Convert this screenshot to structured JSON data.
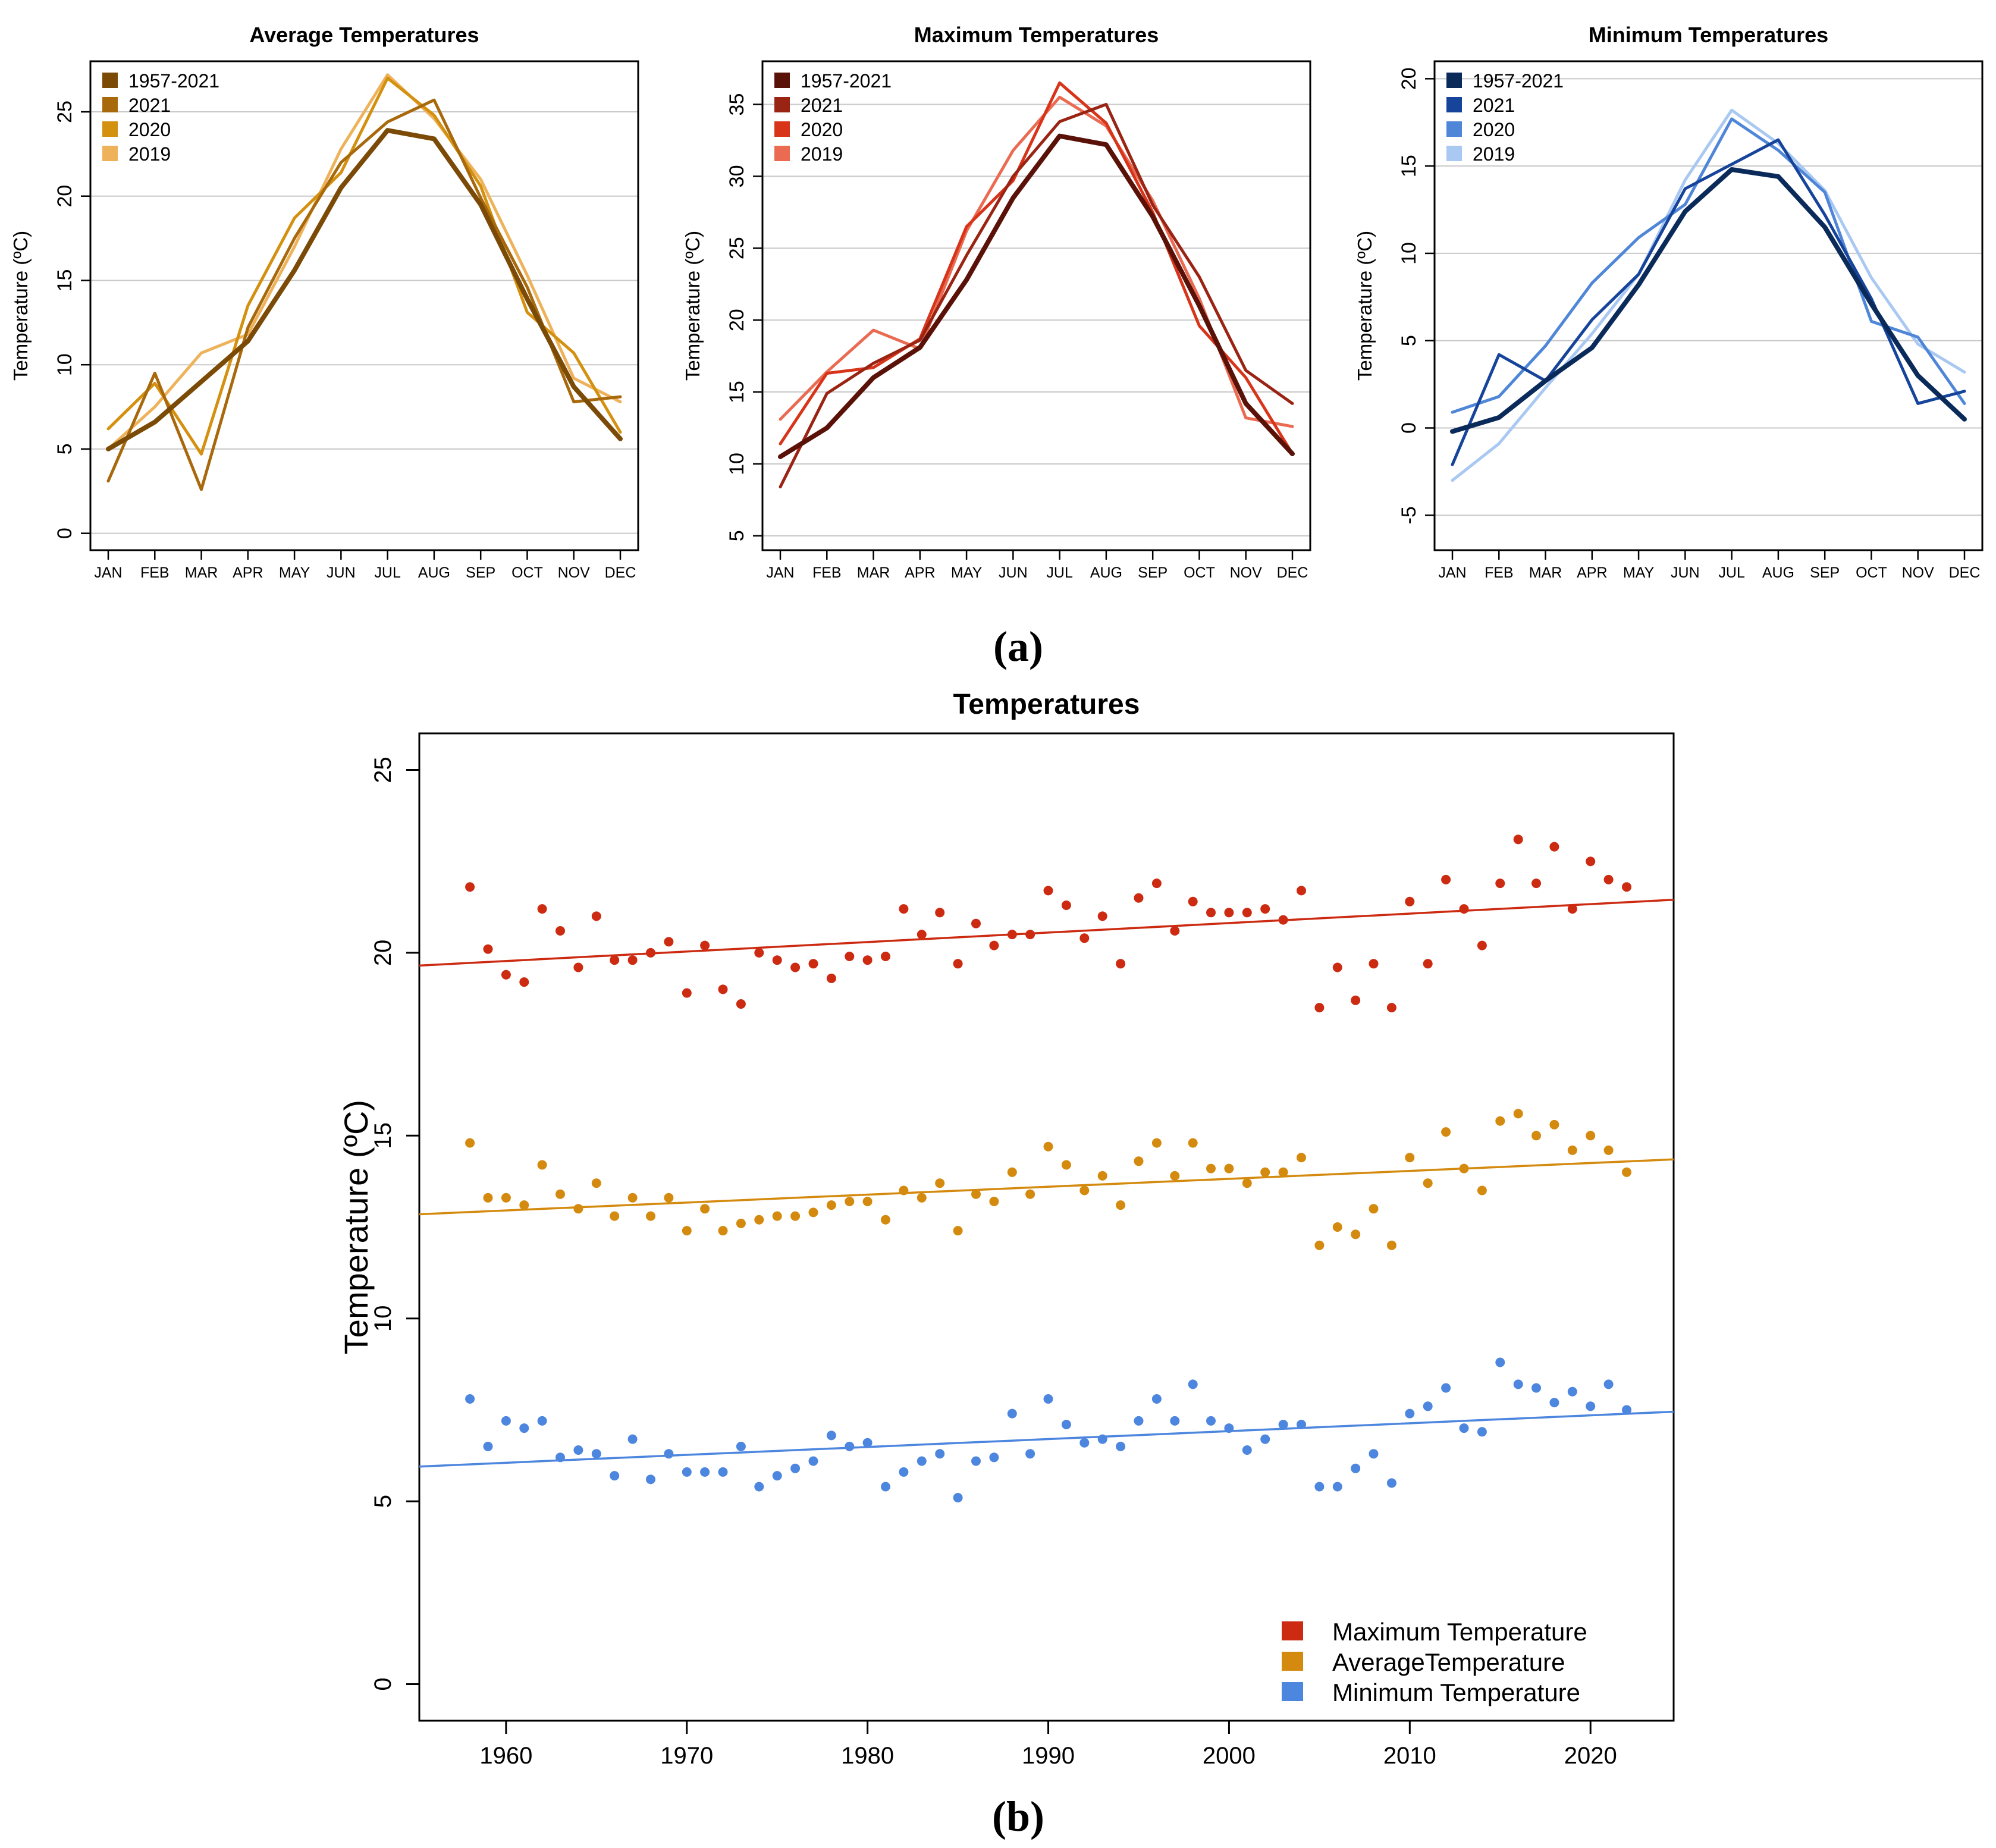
{
  "chart_data": [
    {
      "type": "line",
      "panel": "a1",
      "title": "Average Temperatures",
      "ylabel": "Temperature (ºC)",
      "xlabel": "",
      "categories": [
        "JAN",
        "FEB",
        "MAR",
        "APR",
        "MAY",
        "JUN",
        "JUL",
        "AUG",
        "SEP",
        "OCT",
        "NOV",
        "DEC"
      ],
      "ylim": [
        -1,
        28
      ],
      "yticks": [
        0,
        5,
        10,
        15,
        20,
        25
      ],
      "grid": "horizontal",
      "legend_position": "top-left",
      "series": [
        {
          "name": "1957-2021",
          "color": "#7a4a06",
          "values": [
            5.0,
            6.6,
            9.0,
            11.4,
            15.6,
            20.5,
            23.9,
            23.4,
            19.5,
            13.9,
            8.7,
            5.6
          ]
        },
        {
          "name": "2021",
          "color": "#a8690c",
          "values": [
            3.1,
            9.5,
            2.6,
            12.2,
            17.5,
            22.0,
            24.4,
            25.7,
            19.9,
            14.6,
            7.8,
            8.1
          ]
        },
        {
          "name": "2020",
          "color": "#d4900f",
          "values": [
            6.2,
            8.9,
            4.7,
            13.5,
            18.7,
            21.4,
            27.0,
            24.8,
            20.6,
            13.1,
            10.7,
            6.0
          ]
        },
        {
          "name": "2019",
          "color": "#eeb25a",
          "values": [
            5.0,
            7.5,
            10.7,
            11.8,
            17.0,
            22.8,
            27.2,
            24.6,
            21.0,
            15.3,
            9.2,
            7.8
          ]
        }
      ]
    },
    {
      "type": "line",
      "panel": "a2",
      "title": "Maximum Temperatures",
      "ylabel": "Temperature (ºC)",
      "xlabel": "",
      "categories": [
        "JAN",
        "FEB",
        "MAR",
        "APR",
        "MAY",
        "JUN",
        "JUL",
        "AUG",
        "SEP",
        "OCT",
        "NOV",
        "DEC"
      ],
      "ylim": [
        4,
        38
      ],
      "yticks": [
        5,
        10,
        15,
        20,
        25,
        30,
        35
      ],
      "grid": "horizontal",
      "legend_position": "top-left",
      "series": [
        {
          "name": "1957-2021",
          "color": "#5a1208",
          "values": [
            10.5,
            12.5,
            16.0,
            18.1,
            22.8,
            28.5,
            32.8,
            32.2,
            27.2,
            21.0,
            14.2,
            10.7
          ]
        },
        {
          "name": "2021",
          "color": "#9a2414",
          "values": [
            8.4,
            14.9,
            17.0,
            18.6,
            24.5,
            30.0,
            33.8,
            35.0,
            28.0,
            23.0,
            16.5,
            14.2
          ]
        },
        {
          "name": "2020",
          "color": "#d8341a",
          "values": [
            11.4,
            16.3,
            16.7,
            18.7,
            26.5,
            29.7,
            36.5,
            33.7,
            27.5,
            19.6,
            16.0,
            10.7
          ]
        },
        {
          "name": "2019",
          "color": "#ea6a52",
          "values": [
            13.1,
            16.4,
            19.3,
            18.0,
            26.2,
            31.8,
            35.5,
            33.5,
            28.3,
            21.5,
            13.2,
            12.6
          ]
        }
      ]
    },
    {
      "type": "line",
      "panel": "a3",
      "title": "Minimum Temperatures",
      "ylabel": "Temperature (ºC)",
      "xlabel": "",
      "categories": [
        "JAN",
        "FEB",
        "MAR",
        "APR",
        "MAY",
        "JUN",
        "JUL",
        "AUG",
        "SEP",
        "OCT",
        "NOV",
        "DEC"
      ],
      "ylim": [
        -7,
        21
      ],
      "yticks": [
        -5,
        0,
        5,
        10,
        15,
        20
      ],
      "grid": "horizontal",
      "legend_position": "top-left",
      "series": [
        {
          "name": "1957-2021",
          "color": "#0a2a5a",
          "values": [
            -0.2,
            0.6,
            2.7,
            4.6,
            8.2,
            12.4,
            14.8,
            14.4,
            11.5,
            7.1,
            3.0,
            0.5
          ]
        },
        {
          "name": "2021",
          "color": "#16449a",
          "values": [
            -2.1,
            4.2,
            2.7,
            6.2,
            8.8,
            13.7,
            15.1,
            16.5,
            12.2,
            7.4,
            1.4,
            2.1
          ]
        },
        {
          "name": "2020",
          "color": "#4f86d8",
          "values": [
            0.9,
            1.8,
            4.7,
            8.3,
            10.9,
            12.8,
            17.7,
            15.9,
            13.5,
            6.1,
            5.2,
            1.4
          ]
        },
        {
          "name": "2019",
          "color": "#a9c8f2",
          "values": [
            -3.0,
            -0.9,
            2.3,
            5.4,
            8.8,
            14.2,
            18.2,
            16.3,
            13.6,
            8.6,
            4.8,
            3.2
          ]
        }
      ]
    },
    {
      "type": "scatter",
      "panel": "b",
      "title": "Temperatures",
      "ylabel": "Temperature (ºC)",
      "xlabel": "",
      "xlim": [
        1955.2,
        2024.6
      ],
      "ylim": [
        -1.0,
        26.0
      ],
      "xticks": [
        1960,
        1970,
        1980,
        1990,
        2000,
        2010,
        2020
      ],
      "yticks": [
        0,
        5,
        10,
        15,
        20,
        25
      ],
      "grid": "none",
      "legend_position": "bottom-right",
      "x": [
        1958,
        1959,
        1960,
        1961,
        1962,
        1963,
        1964,
        1965,
        1966,
        1967,
        1968,
        1969,
        1970,
        1971,
        1972,
        1973,
        1974,
        1975,
        1976,
        1977,
        1978,
        1979,
        1980,
        1981,
        1982,
        1983,
        1984,
        1985,
        1986,
        1987,
        1988,
        1989,
        1990,
        1991,
        1992,
        1993,
        1994,
        1995,
        1996,
        1997,
        1998,
        1999,
        2000,
        2001,
        2002,
        2003,
        2004,
        2005,
        2006,
        2007,
        2008,
        2009,
        2010,
        2011,
        2012,
        2013,
        2014,
        2015,
        2016,
        2017,
        2018,
        2019,
        2020,
        2021,
        2022
      ],
      "series": [
        {
          "name": "Maximum Temperature",
          "color": "#cc2b12",
          "trend": [
            19.65,
            21.45
          ],
          "values": [
            21.8,
            20.1,
            19.4,
            19.2,
            21.2,
            20.6,
            19.6,
            21.0,
            19.8,
            19.8,
            20.0,
            20.3,
            18.9,
            20.2,
            19.0,
            18.6,
            20.0,
            19.8,
            19.6,
            19.7,
            19.3,
            19.9,
            19.8,
            19.9,
            21.2,
            20.5,
            21.1,
            19.7,
            20.8,
            20.2,
            20.5,
            20.5,
            21.7,
            21.3,
            20.4,
            21.0,
            19.7,
            21.5,
            21.9,
            20.6,
            21.4,
            21.1,
            21.1,
            21.1,
            21.2,
            20.9,
            21.7,
            18.5,
            19.6,
            18.7,
            19.7,
            18.5,
            21.4,
            19.7,
            22.0,
            21.2,
            20.2,
            21.9,
            23.1,
            21.9,
            22.9,
            21.2,
            22.5,
            22.0,
            21.8
          ]
        },
        {
          "name": "AverageTemperature",
          "color": "#d48a0e",
          "trend": [
            12.85,
            14.35
          ],
          "values": [
            14.8,
            13.3,
            13.3,
            13.1,
            14.2,
            13.4,
            13.0,
            13.7,
            12.8,
            13.3,
            12.8,
            13.3,
            12.4,
            13.0,
            12.4,
            12.6,
            12.7,
            12.8,
            12.8,
            12.9,
            13.1,
            13.2,
            13.2,
            12.7,
            13.5,
            13.3,
            13.7,
            12.4,
            13.4,
            13.2,
            14.0,
            13.4,
            14.7,
            14.2,
            13.5,
            13.9,
            13.1,
            14.3,
            14.8,
            13.9,
            14.8,
            14.1,
            14.1,
            13.7,
            14.0,
            14.0,
            14.4,
            12.0,
            12.5,
            12.3,
            13.0,
            12.0,
            14.4,
            13.7,
            15.1,
            14.1,
            13.5,
            15.4,
            15.6,
            15.0,
            15.3,
            14.6,
            15.0,
            14.6,
            14.0
          ]
        },
        {
          "name": "Minimum Temperature",
          "color": "#4d86de",
          "trend": [
            5.95,
            7.45
          ],
          "values": [
            7.8,
            6.5,
            7.2,
            7.0,
            7.2,
            6.2,
            6.4,
            6.3,
            5.7,
            6.7,
            5.6,
            6.3,
            5.8,
            5.8,
            5.8,
            6.5,
            5.4,
            5.7,
            5.9,
            6.1,
            6.8,
            6.5,
            6.6,
            5.4,
            5.8,
            6.1,
            6.3,
            5.1,
            6.1,
            6.2,
            7.4,
            6.3,
            7.8,
            7.1,
            6.6,
            6.7,
            6.5,
            7.2,
            7.8,
            7.2,
            8.2,
            7.2,
            7.0,
            6.4,
            6.7,
            7.1,
            7.1,
            5.4,
            5.4,
            5.9,
            6.3,
            5.5,
            7.4,
            7.6,
            8.1,
            7.0,
            6.9,
            8.8,
            8.2,
            8.1,
            7.7,
            8.0,
            7.6,
            8.2,
            7.5
          ]
        }
      ]
    }
  ],
  "captions": {
    "a": "(a)",
    "b": "(b)"
  }
}
